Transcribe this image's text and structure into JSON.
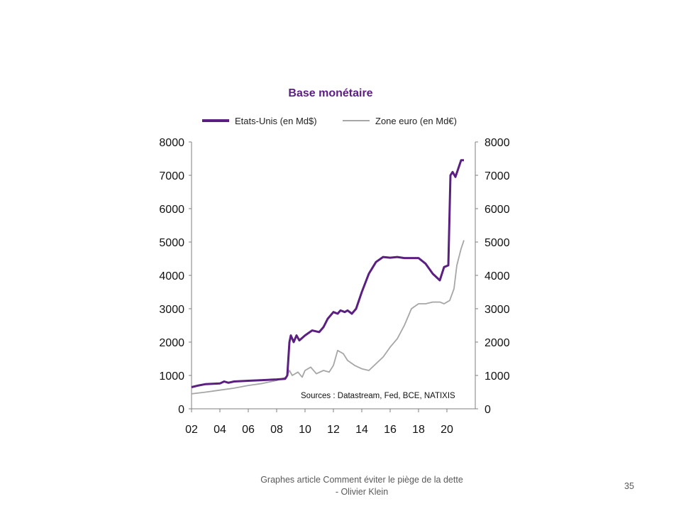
{
  "chart_data": {
    "type": "line",
    "title": "Base monétaire",
    "x_ticks": [
      "02",
      "04",
      "06",
      "08",
      "10",
      "12",
      "14",
      "16",
      "18",
      "20"
    ],
    "xlim": [
      2002,
      2022
    ],
    "ylim": [
      0,
      8000
    ],
    "y_ticks": [
      "0",
      "1000",
      "2000",
      "3000",
      "4000",
      "5000",
      "6000",
      "7000",
      "8000"
    ],
    "y_ticks_right": [
      "0",
      "1000",
      "2000",
      "3000",
      "4000",
      "5000",
      "6000",
      "7000",
      "8000"
    ],
    "source_note": "Sources : Datastream, Fed, BCE, NATIXIS",
    "grid": false,
    "legend_position": "top",
    "series": [
      {
        "name": "Etats-Unis (en Md$)",
        "color": "#5b1f82",
        "points": [
          [
            2002.0,
            650
          ],
          [
            2002.5,
            700
          ],
          [
            2003.0,
            740
          ],
          [
            2004.0,
            760
          ],
          [
            2004.3,
            820
          ],
          [
            2004.6,
            780
          ],
          [
            2005.0,
            820
          ],
          [
            2006.0,
            840
          ],
          [
            2007.0,
            860
          ],
          [
            2008.0,
            880
          ],
          [
            2008.6,
            900
          ],
          [
            2008.75,
            1000
          ],
          [
            2008.9,
            2000
          ],
          [
            2009.0,
            2200
          ],
          [
            2009.2,
            2000
          ],
          [
            2009.4,
            2200
          ],
          [
            2009.6,
            2050
          ],
          [
            2010.0,
            2200
          ],
          [
            2010.5,
            2350
          ],
          [
            2011.0,
            2300
          ],
          [
            2011.3,
            2450
          ],
          [
            2011.6,
            2700
          ],
          [
            2012.0,
            2900
          ],
          [
            2012.3,
            2850
          ],
          [
            2012.5,
            2950
          ],
          [
            2012.8,
            2900
          ],
          [
            2013.0,
            2950
          ],
          [
            2013.3,
            2850
          ],
          [
            2013.6,
            3000
          ],
          [
            2014.0,
            3500
          ],
          [
            2014.5,
            4050
          ],
          [
            2015.0,
            4400
          ],
          [
            2015.5,
            4550
          ],
          [
            2016.0,
            4530
          ],
          [
            2016.5,
            4550
          ],
          [
            2017.0,
            4520
          ],
          [
            2018.0,
            4520
          ],
          [
            2018.5,
            4350
          ],
          [
            2019.0,
            4050
          ],
          [
            2019.5,
            3850
          ],
          [
            2019.8,
            4250
          ],
          [
            2020.1,
            4300
          ],
          [
            2020.25,
            7000
          ],
          [
            2020.4,
            7100
          ],
          [
            2020.6,
            6950
          ],
          [
            2020.8,
            7200
          ],
          [
            2021.0,
            7450
          ],
          [
            2021.2,
            7450
          ]
        ]
      },
      {
        "name": "Zone euro (en Md€)",
        "color": "#a6a6a6",
        "points": [
          [
            2002.0,
            450
          ],
          [
            2003.0,
            500
          ],
          [
            2004.0,
            560
          ],
          [
            2005.0,
            620
          ],
          [
            2006.0,
            700
          ],
          [
            2007.0,
            760
          ],
          [
            2008.0,
            850
          ],
          [
            2008.7,
            950
          ],
          [
            2008.9,
            1150
          ],
          [
            2009.1,
            1000
          ],
          [
            2009.5,
            1100
          ],
          [
            2009.8,
            950
          ],
          [
            2010.0,
            1150
          ],
          [
            2010.4,
            1250
          ],
          [
            2010.8,
            1050
          ],
          [
            2011.3,
            1150
          ],
          [
            2011.7,
            1100
          ],
          [
            2012.0,
            1300
          ],
          [
            2012.3,
            1750
          ],
          [
            2012.7,
            1650
          ],
          [
            2013.0,
            1450
          ],
          [
            2013.5,
            1300
          ],
          [
            2014.0,
            1200
          ],
          [
            2014.5,
            1150
          ],
          [
            2015.0,
            1350
          ],
          [
            2015.5,
            1550
          ],
          [
            2016.0,
            1850
          ],
          [
            2016.5,
            2100
          ],
          [
            2017.0,
            2500
          ],
          [
            2017.5,
            3000
          ],
          [
            2018.0,
            3150
          ],
          [
            2018.5,
            3150
          ],
          [
            2019.0,
            3200
          ],
          [
            2019.5,
            3200
          ],
          [
            2019.8,
            3150
          ],
          [
            2020.2,
            3250
          ],
          [
            2020.5,
            3600
          ],
          [
            2020.7,
            4300
          ],
          [
            2021.0,
            4800
          ],
          [
            2021.2,
            5050
          ]
        ]
      }
    ]
  },
  "footer": {
    "line1": "Graphes article Comment  éviter le piège de la dette",
    "line2": "- Olivier Klein"
  },
  "page_number": "35"
}
